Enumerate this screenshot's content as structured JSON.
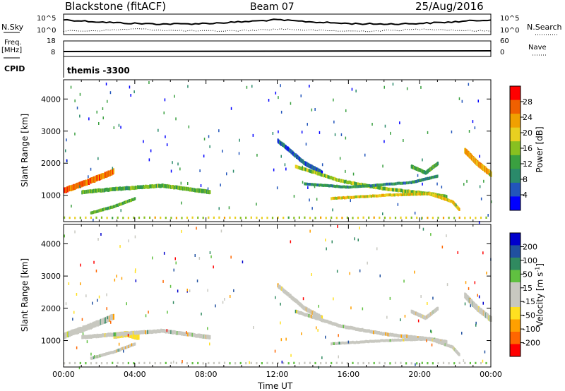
{
  "header": {
    "station": "Blackstone (fitACF)",
    "beam": "Beam 07",
    "date": "25/Aug/2016"
  },
  "side_labels": {
    "nsky": "N.Sky",
    "freq": "Freq.",
    "freq_unit": "[MHz]",
    "cpid": "CPID",
    "nsearch": "N.Search",
    "nave": "Nave"
  },
  "small_axes": {
    "nsky_ticks": [
      "10^5",
      "10^0"
    ],
    "nsearch_ticks": [
      "10^5",
      "10^0"
    ],
    "freq_ticks": [
      "18",
      "8"
    ],
    "nave_ticks": [
      "60",
      "0"
    ]
  },
  "cpid_text": "themis -3300",
  "colors": {
    "power_scale": [
      "#0000ff",
      "#2255bb",
      "#2a8a6a",
      "#3aa040",
      "#88c020",
      "#e8d020",
      "#f0a000",
      "#f06000",
      "#ff0000"
    ],
    "velocity_scale": [
      "#ff0000",
      "#ff6600",
      "#ffa000",
      "#ffe020",
      "#c8c8c0",
      "#c8c8c0",
      "#60c040",
      "#308a60",
      "#2050a0",
      "#0000cc"
    ],
    "ground_scatter": "#c8c8c0"
  },
  "chart_data": [
    {
      "type": "heatmap",
      "name": "power",
      "ylabel": "Slant Range [km]",
      "xlabel": "",
      "yticks": [
        "1000",
        "2000",
        "3000",
        "4000"
      ],
      "xticks": [],
      "ylim": [
        180,
        4600
      ],
      "xlim": [
        0,
        24
      ],
      "colorbar": {
        "label": "Power [dB]",
        "ticks": [
          "4",
          "8",
          "12",
          "16",
          "20",
          "24",
          "28"
        ],
        "range": [
          0,
          32
        ]
      },
      "bands": [
        {
          "t": [
            0.0,
            1.5,
            2.8
          ],
          "r": [
            1150,
            1450,
            1750
          ],
          "w": 180,
          "v": 26
        },
        {
          "t": [
            1.0,
            3.0,
            5.5,
            7.5,
            8.2
          ],
          "r": [
            1100,
            1200,
            1300,
            1150,
            1100
          ],
          "w": 120,
          "v": 14
        },
        {
          "t": [
            1.5,
            2.8,
            4.0
          ],
          "r": [
            450,
            650,
            900
          ],
          "w": 90,
          "v": 14
        },
        {
          "t": [
            12.0,
            13.5,
            14.5
          ],
          "r": [
            2700,
            2000,
            1700
          ],
          "w": 130,
          "v": 6
        },
        {
          "t": [
            13.0,
            15.5,
            18.0,
            20.5,
            21.5
          ],
          "r": [
            1900,
            1450,
            1200,
            1050,
            950
          ],
          "w": 110,
          "v": 16
        },
        {
          "t": [
            13.5,
            16.0,
            19.5,
            21.0
          ],
          "r": [
            1350,
            1250,
            1400,
            1600
          ],
          "w": 90,
          "v": 10
        },
        {
          "t": [
            15.0,
            18.0,
            20.5,
            21.8,
            22.2
          ],
          "r": [
            900,
            1000,
            1050,
            800,
            550
          ],
          "w": 90,
          "v": 20
        },
        {
          "t": [
            19.5,
            20.3,
            21.0
          ],
          "r": [
            1900,
            1700,
            2000
          ],
          "w": 110,
          "v": 12
        },
        {
          "t": [
            22.5,
            23.2,
            24.0
          ],
          "r": [
            2400,
            2000,
            1650
          ],
          "w": 170,
          "v": 22
        },
        {
          "t": [
            0.0,
            12.0,
            24.0
          ],
          "r": [
            300,
            300,
            300
          ],
          "w": 70,
          "v": 18
        }
      ]
    },
    {
      "type": "heatmap",
      "name": "velocity",
      "ylabel": "Slant Range [km]",
      "xlabel": "Time UT",
      "yticks": [
        "1000",
        "2000",
        "3000",
        "4000"
      ],
      "xticks": [
        "00:00",
        "04:00",
        "08:00",
        "12:00",
        "16:00",
        "20:00",
        "00:00"
      ],
      "ylim": [
        180,
        4600
      ],
      "xlim": [
        0,
        24
      ],
      "colorbar": {
        "label": "Velocity [m s",
        "label_sup": "-1",
        "label_end": "]",
        "ticks": [
          "200",
          "100",
          "50",
          "15",
          "-15",
          "-50",
          "-100",
          "-200"
        ],
        "range": [
          -250,
          250
        ]
      },
      "bands": [
        {
          "t": [
            0.0,
            1.5,
            2.8
          ],
          "r": [
            1150,
            1450,
            1750
          ],
          "w": 180,
          "v": 0
        },
        {
          "t": [
            2.8,
            3.5,
            4.2
          ],
          "r": [
            1150,
            1200,
            1100
          ],
          "w": 170,
          "v": -60
        },
        {
          "t": [
            1.0,
            3.0,
            5.5,
            7.5,
            8.2
          ],
          "r": [
            1100,
            1200,
            1300,
            1150,
            1100
          ],
          "w": 120,
          "v": 0
        },
        {
          "t": [
            1.5,
            2.8,
            4.0
          ],
          "r": [
            450,
            650,
            900
          ],
          "w": 90,
          "v": 0
        },
        {
          "t": [
            12.0,
            13.5,
            14.5
          ],
          "r": [
            2700,
            2000,
            1700
          ],
          "w": 130,
          "v": 0
        },
        {
          "t": [
            13.0,
            15.5,
            18.0,
            20.5,
            21.5
          ],
          "r": [
            1900,
            1450,
            1200,
            1050,
            950
          ],
          "w": 110,
          "v": 0
        },
        {
          "t": [
            15.0,
            18.0,
            20.5,
            21.8,
            22.2
          ],
          "r": [
            900,
            1000,
            1050,
            800,
            550
          ],
          "w": 90,
          "v": 0
        },
        {
          "t": [
            19.5,
            20.3,
            21.0
          ],
          "r": [
            1900,
            1700,
            2000
          ],
          "w": 110,
          "v": 0
        },
        {
          "t": [
            22.5,
            23.2,
            24.0
          ],
          "r": [
            2400,
            2000,
            1650
          ],
          "w": 170,
          "v": 0
        },
        {
          "t": [
            0.0,
            12.0,
            24.0
          ],
          "r": [
            300,
            300,
            300
          ],
          "w": 70,
          "v": 40
        }
      ]
    }
  ]
}
